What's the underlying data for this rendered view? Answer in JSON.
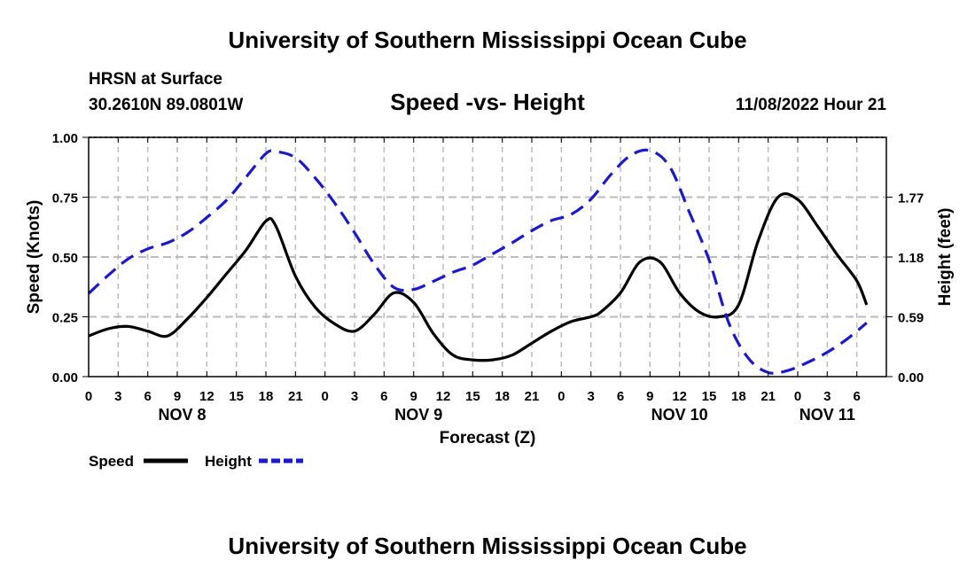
{
  "header": {
    "title": "University of Southern Mississippi Ocean Cube",
    "station": "HRSN at Surface",
    "coords": "30.2610N  89.0801W",
    "chart_title": "Speed -vs- Height",
    "timestamp": "11/08/2022 Hour 21"
  },
  "footer": {
    "title": "University of Southern Mississippi Ocean Cube"
  },
  "colors": {
    "speed": "#000000",
    "height": "#1a1acc",
    "grid": "#bbbbbb"
  },
  "chart_data": {
    "type": "line",
    "xlabel": "Forecast (Z)",
    "ylabel_left": "Speed (Knots)",
    "ylabel_right": "Height (feet)",
    "x_range": [
      0,
      81
    ],
    "y_range_left": [
      0,
      1.0
    ],
    "y_range_right": [
      0,
      2.36
    ],
    "x_ticks": [
      {
        "x": 0,
        "label": "0"
      },
      {
        "x": 3,
        "label": "3"
      },
      {
        "x": 6,
        "label": "6"
      },
      {
        "x": 9,
        "label": "9"
      },
      {
        "x": 12,
        "label": "12"
      },
      {
        "x": 15,
        "label": "15"
      },
      {
        "x": 18,
        "label": "18"
      },
      {
        "x": 21,
        "label": "21"
      },
      {
        "x": 24,
        "label": "0"
      },
      {
        "x": 27,
        "label": "3"
      },
      {
        "x": 30,
        "label": "6"
      },
      {
        "x": 33,
        "label": "9"
      },
      {
        "x": 36,
        "label": "12"
      },
      {
        "x": 39,
        "label": "15"
      },
      {
        "x": 42,
        "label": "18"
      },
      {
        "x": 45,
        "label": "21"
      },
      {
        "x": 48,
        "label": "0"
      },
      {
        "x": 51,
        "label": "3"
      },
      {
        "x": 54,
        "label": "6"
      },
      {
        "x": 57,
        "label": "9"
      },
      {
        "x": 60,
        "label": "12"
      },
      {
        "x": 63,
        "label": "15"
      },
      {
        "x": 66,
        "label": "18"
      },
      {
        "x": 69,
        "label": "21"
      },
      {
        "x": 72,
        "label": "0"
      },
      {
        "x": 75,
        "label": "3"
      },
      {
        "x": 78,
        "label": "6"
      }
    ],
    "day_labels": [
      {
        "x": 9.5,
        "label": "NOV 8"
      },
      {
        "x": 33.5,
        "label": "NOV 9"
      },
      {
        "x": 60,
        "label": "NOV 10"
      },
      {
        "x": 75,
        "label": "NOV 11"
      }
    ],
    "y_ticks_left": [
      {
        "v": 0.0,
        "label": "0.00"
      },
      {
        "v": 0.25,
        "label": "0.25"
      },
      {
        "v": 0.5,
        "label": "0.50"
      },
      {
        "v": 0.75,
        "label": "0.75"
      },
      {
        "v": 1.0,
        "label": "1.00"
      }
    ],
    "y_ticks_right": [
      {
        "v": 0.0,
        "label": "0.00"
      },
      {
        "v": 0.59,
        "label": "0.59"
      },
      {
        "v": 1.18,
        "label": "1.18"
      },
      {
        "v": 1.77,
        "label": "1.77"
      }
    ],
    "series": [
      {
        "name": "Speed",
        "axis": "left",
        "style": "solid",
        "x": [
          0,
          2,
          4,
          6,
          8,
          10,
          12,
          14,
          16,
          18,
          19,
          21,
          23,
          25,
          27,
          29,
          31,
          33,
          35,
          37,
          39,
          41,
          43,
          45,
          47,
          49,
          51,
          52,
          54,
          56,
          58,
          60,
          62,
          64,
          66,
          68,
          70,
          72,
          74,
          76,
          78,
          79
        ],
        "values": [
          0.17,
          0.2,
          0.21,
          0.19,
          0.17,
          0.24,
          0.33,
          0.43,
          0.53,
          0.65,
          0.63,
          0.42,
          0.29,
          0.22,
          0.19,
          0.26,
          0.35,
          0.31,
          0.18,
          0.09,
          0.07,
          0.07,
          0.09,
          0.14,
          0.19,
          0.23,
          0.25,
          0.27,
          0.35,
          0.48,
          0.48,
          0.35,
          0.27,
          0.25,
          0.3,
          0.57,
          0.75,
          0.74,
          0.63,
          0.51,
          0.4,
          0.3
        ]
      },
      {
        "name": "Height",
        "axis": "right",
        "style": "dashed",
        "x": [
          0,
          2,
          4,
          6,
          8,
          10,
          12,
          14,
          16,
          18,
          19,
          21,
          23,
          25,
          27,
          29,
          31,
          33,
          35,
          37,
          39,
          41,
          43,
          45,
          47,
          49,
          51,
          53,
          55,
          57,
          59,
          61,
          63,
          65,
          67,
          69,
          71,
          73,
          75,
          77,
          79
        ],
        "values": [
          0.82,
          1.0,
          1.16,
          1.26,
          1.32,
          1.42,
          1.57,
          1.74,
          1.97,
          2.2,
          2.22,
          2.16,
          1.96,
          1.71,
          1.42,
          1.11,
          0.88,
          0.86,
          0.94,
          1.03,
          1.1,
          1.21,
          1.32,
          1.44,
          1.54,
          1.6,
          1.75,
          1.99,
          2.18,
          2.23,
          2.07,
          1.62,
          1.15,
          0.53,
          0.18,
          0.04,
          0.06,
          0.14,
          0.24,
          0.37,
          0.53
        ]
      }
    ],
    "legend": [
      {
        "label": "Speed",
        "style": "solid"
      },
      {
        "label": "Height",
        "style": "dashed"
      }
    ],
    "grid": true
  }
}
